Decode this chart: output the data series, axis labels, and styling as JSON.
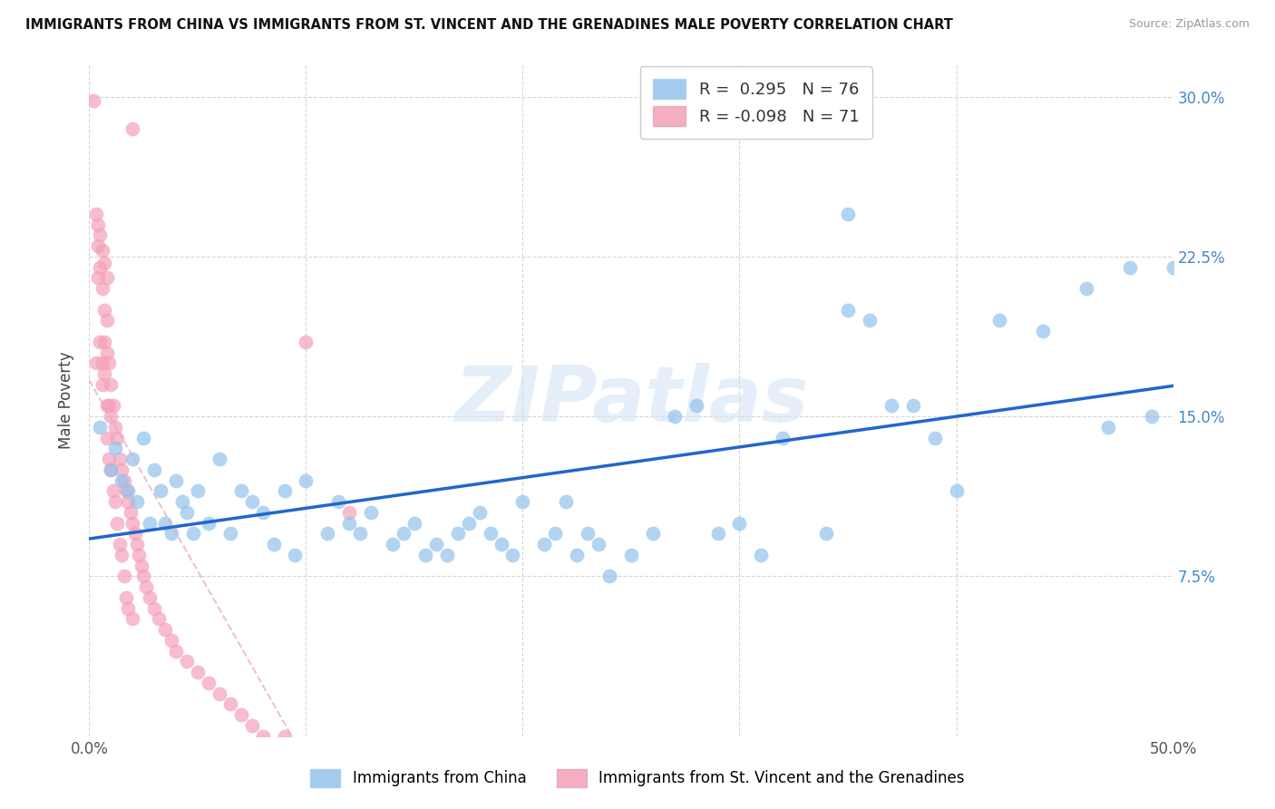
{
  "title": "IMMIGRANTS FROM CHINA VS IMMIGRANTS FROM ST. VINCENT AND THE GRENADINES MALE POVERTY CORRELATION CHART",
  "source": "Source: ZipAtlas.com",
  "ylabel": "Male Poverty",
  "xlim": [
    0.0,
    0.5
  ],
  "ylim": [
    0.0,
    0.315
  ],
  "R_china": 0.295,
  "N_china": 76,
  "R_svg": -0.098,
  "N_svg": 71,
  "color_china": "#92C2EC",
  "color_svg": "#F4A0B8",
  "trendline_china": "#2266CC",
  "trendline_svg": "#E8A8BC",
  "legend_label_china": "Immigrants from China",
  "legend_label_svg": "Immigrants from St. Vincent and the Grenadines",
  "watermark": "ZIPatlas",
  "china_x": [
    0.005,
    0.01,
    0.012,
    0.015,
    0.018,
    0.02,
    0.022,
    0.025,
    0.028,
    0.03,
    0.033,
    0.035,
    0.038,
    0.04,
    0.043,
    0.045,
    0.048,
    0.05,
    0.055,
    0.06,
    0.065,
    0.07,
    0.075,
    0.08,
    0.085,
    0.09,
    0.095,
    0.1,
    0.11,
    0.115,
    0.12,
    0.125,
    0.13,
    0.14,
    0.145,
    0.15,
    0.155,
    0.16,
    0.165,
    0.17,
    0.175,
    0.18,
    0.185,
    0.19,
    0.195,
    0.2,
    0.21,
    0.215,
    0.22,
    0.225,
    0.23,
    0.235,
    0.24,
    0.25,
    0.26,
    0.27,
    0.28,
    0.29,
    0.3,
    0.31,
    0.32,
    0.34,
    0.35,
    0.36,
    0.37,
    0.38,
    0.39,
    0.4,
    0.42,
    0.44,
    0.46,
    0.47,
    0.48,
    0.49,
    0.5,
    0.35
  ],
  "china_y": [
    0.145,
    0.125,
    0.135,
    0.12,
    0.115,
    0.13,
    0.11,
    0.14,
    0.1,
    0.125,
    0.115,
    0.1,
    0.095,
    0.12,
    0.11,
    0.105,
    0.095,
    0.115,
    0.1,
    0.13,
    0.095,
    0.115,
    0.11,
    0.105,
    0.09,
    0.115,
    0.085,
    0.12,
    0.095,
    0.11,
    0.1,
    0.095,
    0.105,
    0.09,
    0.095,
    0.1,
    0.085,
    0.09,
    0.085,
    0.095,
    0.1,
    0.105,
    0.095,
    0.09,
    0.085,
    0.11,
    0.09,
    0.095,
    0.11,
    0.085,
    0.095,
    0.09,
    0.075,
    0.085,
    0.095,
    0.15,
    0.155,
    0.095,
    0.1,
    0.085,
    0.14,
    0.095,
    0.2,
    0.195,
    0.155,
    0.155,
    0.14,
    0.115,
    0.195,
    0.19,
    0.21,
    0.145,
    0.22,
    0.15,
    0.22,
    0.245
  ],
  "svg_x": [
    0.002,
    0.003,
    0.004,
    0.004,
    0.005,
    0.005,
    0.006,
    0.006,
    0.006,
    0.007,
    0.007,
    0.007,
    0.008,
    0.008,
    0.008,
    0.008,
    0.009,
    0.009,
    0.009,
    0.01,
    0.01,
    0.01,
    0.011,
    0.011,
    0.012,
    0.012,
    0.013,
    0.013,
    0.014,
    0.014,
    0.015,
    0.015,
    0.016,
    0.016,
    0.017,
    0.017,
    0.018,
    0.018,
    0.019,
    0.02,
    0.02,
    0.021,
    0.022,
    0.023,
    0.024,
    0.025,
    0.026,
    0.028,
    0.03,
    0.032,
    0.035,
    0.038,
    0.04,
    0.045,
    0.05,
    0.055,
    0.06,
    0.065,
    0.07,
    0.075,
    0.08,
    0.09,
    0.1,
    0.12,
    0.003,
    0.004,
    0.005,
    0.006,
    0.007,
    0.008,
    0.02
  ],
  "svg_y": [
    0.298,
    0.175,
    0.23,
    0.215,
    0.22,
    0.185,
    0.21,
    0.175,
    0.165,
    0.2,
    0.185,
    0.17,
    0.195,
    0.18,
    0.155,
    0.14,
    0.175,
    0.155,
    0.13,
    0.165,
    0.15,
    0.125,
    0.155,
    0.115,
    0.145,
    0.11,
    0.14,
    0.1,
    0.13,
    0.09,
    0.125,
    0.085,
    0.12,
    0.075,
    0.115,
    0.065,
    0.11,
    0.06,
    0.105,
    0.1,
    0.055,
    0.095,
    0.09,
    0.085,
    0.08,
    0.075,
    0.07,
    0.065,
    0.06,
    0.055,
    0.05,
    0.045,
    0.04,
    0.035,
    0.03,
    0.025,
    0.02,
    0.015,
    0.01,
    0.005,
    0.0,
    0.0,
    0.185,
    0.105,
    0.245,
    0.24,
    0.235,
    0.228,
    0.222,
    0.215,
    0.285
  ]
}
